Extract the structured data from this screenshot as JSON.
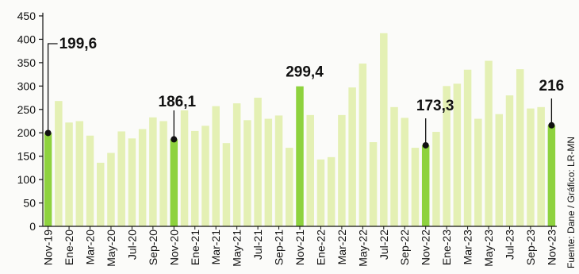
{
  "chart_data": {
    "type": "bar",
    "categories": [
      "Nov-19",
      "Dic-19",
      "Ene-20",
      "Feb-20",
      "Mar-20",
      "Abr-20",
      "May-20",
      "Jun-20",
      "Jul-20",
      "Ago-20",
      "Sep-20",
      "Oct-20",
      "Nov-20",
      "Dic-20",
      "Ene-21",
      "Feb-21",
      "Mar-21",
      "Abr-21",
      "May-21",
      "Jun-21",
      "Jul-21",
      "Ago-21",
      "Sep-21",
      "Oct-21",
      "Nov-21",
      "Dic-21",
      "Ene-22",
      "Feb-22",
      "Mar-22",
      "Abr-22",
      "May-22",
      "Jun-22",
      "Jul-22",
      "Ago-22",
      "Sep-22",
      "Oct-22",
      "Nov-22",
      "Dic-22",
      "Ene-23",
      "Feb-23",
      "Mar-23",
      "Abr-23",
      "May-23",
      "Jun-23",
      "Jul-23",
      "Ago-23",
      "Sep-23",
      "Oct-23",
      "Nov-23"
    ],
    "x_tick_labels": [
      "Nov-19",
      "Ene-20",
      "Mar-20",
      "May-20",
      "Jul-20",
      "Sep-20",
      "Nov-20",
      "Ene-21",
      "Mar-21",
      "May-21",
      "Jul-21",
      "Sep-21",
      "Nov-21",
      "Ene-22",
      "Mar-22",
      "May-22",
      "Jul-22",
      "Sep-22",
      "Nov-22",
      "Ene-23",
      "Mar-23",
      "May-23",
      "Jul-23",
      "Sep-23",
      "Nov-23"
    ],
    "values": [
      199.6,
      268,
      222,
      225,
      194,
      136,
      157,
      203,
      188,
      208,
      233,
      225,
      186.1,
      248,
      204,
      215,
      257,
      178,
      263,
      227,
      275,
      230,
      237,
      168,
      299.4,
      238,
      143,
      148,
      238,
      297,
      348,
      180,
      413,
      255,
      232,
      168,
      173.3,
      202,
      300,
      305,
      335,
      230,
      354,
      240,
      280,
      336,
      252,
      255,
      216
    ],
    "highlighted": [
      "Nov-19",
      "Nov-20",
      "Nov-21",
      "Nov-22",
      "Nov-23"
    ],
    "data_labels": [
      {
        "category": "Nov-19",
        "text": "199,6"
      },
      {
        "category": "Nov-20",
        "text": "186,1"
      },
      {
        "category": "Nov-21",
        "text": "299,4"
      },
      {
        "category": "Nov-22",
        "text": "173,3"
      },
      {
        "category": "Nov-23",
        "text": "216"
      }
    ],
    "ylim": [
      0,
      450
    ],
    "yticks": [
      0,
      50,
      100,
      150,
      200,
      250,
      300,
      350,
      400,
      450
    ],
    "grid": false,
    "source": "Fuente: Dane / Gráfico: LR-MN",
    "colors": {
      "bar": "#e4f0b4",
      "highlight": "#8ed23e",
      "axis": "#111111",
      "marker": "#111111"
    }
  }
}
